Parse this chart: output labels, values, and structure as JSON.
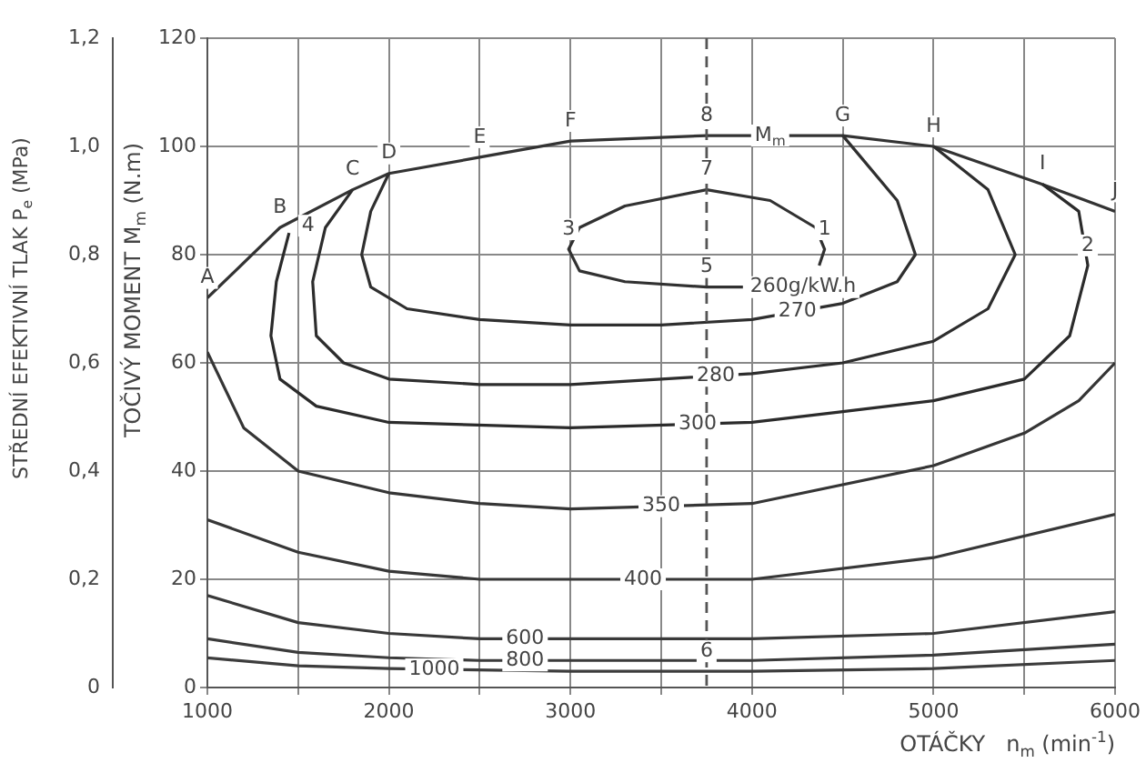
{
  "chart_data": {
    "type": "line",
    "xlabel": "OTÁČKY   n$_{m}$ (min$^{-1}$)",
    "ylabel": "TOČIVÝ MOMENT M$_{m}$ (N.m)",
    "y2label": "STŘEDNÍ EFEKTIVNÍ TLAK P$_{e}$ (MPa)",
    "xlim": [
      1000,
      6000
    ],
    "xticks": [
      1000,
      {
        "value": 1500,
        "label": null
      },
      2000,
      {
        "value": 2500,
        "label": null
      },
      3000,
      {
        "value": 3500,
        "label": null
      },
      4000,
      {
        "value": 4500,
        "label": null
      },
      5000,
      {
        "value": 5500,
        "label": null
      },
      6000
    ],
    "ylim": [
      0,
      120
    ],
    "yticks": [
      0,
      20,
      40,
      60,
      80,
      100,
      120
    ],
    "y2lim": [
      0,
      1.2
    ],
    "y2ticks": [
      0,
      {
        "value": 0.2,
        "label": "0,2"
      },
      {
        "value": 0.4,
        "label": "0,4"
      },
      {
        "value": 0.6,
        "label": "0,6"
      },
      {
        "value": 0.8,
        "label": "0,8"
      },
      {
        "value": 1.0,
        "label": "1,0"
      },
      {
        "value": 1.2,
        "label": "1,2"
      }
    ],
    "grid": true,
    "legend": false,
    "marker": "none",
    "line_style": "solid",
    "series": [
      {
        "type": "line",
        "color": "#333333",
        "x": [
          1000,
          1400,
          1800,
          2000,
          2500,
          3000,
          3750,
          4100,
          4500,
          5000,
          5600,
          6000
        ],
        "values": [
          72,
          85,
          92,
          95,
          98,
          101,
          102,
          102,
          102,
          100,
          93,
          88
        ]
      },
      {
        "type": "line",
        "color": "#313131",
        "x": [
          3950,
          3750,
          3300,
          3050,
          2990,
          3050,
          3300,
          3750,
          4100,
          4350,
          4400,
          4370
        ],
        "values": [
          74,
          74,
          75,
          77,
          81,
          85,
          89,
          92,
          90,
          85,
          81,
          78
        ]
      },
      {
        "type": "line",
        "color": "#2f2f2f",
        "x": [
          2000,
          1900,
          1850,
          1900,
          2100,
          2500,
          3000,
          3500,
          4000,
          4500,
          4800,
          4900,
          4800,
          4600,
          4500
        ],
        "values": [
          95,
          88,
          80,
          74,
          70,
          68,
          67,
          67,
          68,
          71,
          75,
          80,
          90,
          98,
          102
        ]
      },
      {
        "type": "line",
        "color": "#2d2d2d",
        "x": [
          1800,
          1650,
          1580,
          1600,
          1750,
          2000,
          2500,
          3000,
          3500,
          4000,
          4500,
          5000,
          5300,
          5450,
          5300,
          5000
        ],
        "values": [
          92,
          85,
          75,
          65,
          60,
          57,
          56,
          56,
          57,
          58,
          60,
          64,
          70,
          80,
          92,
          100
        ]
      },
      {
        "type": "line",
        "color": "#2b2b2b",
        "x": [
          1450,
          1380,
          1350,
          1400,
          1600,
          2000,
          3000,
          4000,
          4500,
          5000,
          5500,
          5750,
          5850,
          5800,
          5600
        ],
        "values": [
          84,
          75,
          65,
          57,
          52,
          49,
          48,
          49,
          51,
          53,
          57,
          65,
          78,
          88,
          93
        ]
      },
      {
        "type": "line",
        "color": "#353535",
        "x": [
          1000,
          1200,
          1500,
          2000,
          2500,
          3000,
          4000,
          5000,
          5500,
          5800,
          6000
        ],
        "values": [
          62,
          48,
          40,
          36,
          34,
          33,
          34,
          41,
          47,
          53,
          60
        ]
      },
      {
        "type": "line",
        "color": "#373737",
        "x": [
          1000,
          1500,
          2000,
          2500,
          3000,
          4000,
          5000,
          6000
        ],
        "values": [
          31,
          25,
          21.5,
          20,
          20,
          20,
          24,
          32
        ]
      },
      {
        "type": "line",
        "color": "#393939",
        "x": [
          1000,
          1500,
          2000,
          2500,
          3000,
          4000,
          5000,
          6000
        ],
        "values": [
          17,
          12,
          10,
          9,
          9,
          9,
          10,
          14
        ]
      },
      {
        "type": "line",
        "color": "#3b3b3b",
        "x": [
          1000,
          1500,
          2000,
          2500,
          3000,
          4000,
          5000,
          6000
        ],
        "values": [
          9,
          6.5,
          5.5,
          5,
          5,
          5,
          6,
          8
        ]
      },
      {
        "type": "line",
        "color": "#3d3d3d",
        "x": [
          1000,
          1500,
          2000,
          3000,
          4000,
          5000,
          6000
        ],
        "values": [
          5.5,
          4,
          3.5,
          3,
          3,
          3.5,
          5
        ]
      }
    ],
    "ref_lines": [
      {
        "axis": "x",
        "value": 3750,
        "line_style": "dashed",
        "color": "#555555"
      }
    ],
    "annotations": [
      {
        "text": "A",
        "x": 1000,
        "y": 72
      },
      {
        "text": "B",
        "x": 1400,
        "y": 85
      },
      {
        "text": "C",
        "x": 1800,
        "y": 92
      },
      {
        "text": "D",
        "x": 2000,
        "y": 95
      },
      {
        "text": "E",
        "x": 2500,
        "y": 98
      },
      {
        "text": "F",
        "x": 3000,
        "y": 101
      },
      {
        "text": "8",
        "x": 3750,
        "y": 102
      },
      {
        "text": "M$_{m}$",
        "x": 4100,
        "y": 102
      },
      {
        "text": "G",
        "x": 4500,
        "y": 102
      },
      {
        "text": "H",
        "x": 5000,
        "y": 100
      },
      {
        "text": "I",
        "x": 5600,
        "y": 93
      },
      {
        "text": "J",
        "x": 6000,
        "y": 88
      },
      {
        "text": "1",
        "x": 4400,
        "y": 81
      },
      {
        "text": "2",
        "x": 5850,
        "y": 78
      },
      {
        "text": "3",
        "x": 2990,
        "y": 81
      },
      {
        "text": "4",
        "x": 1450,
        "y": 84
      },
      {
        "text": "5",
        "x": 3750,
        "y": 74
      },
      {
        "text": "6",
        "x": 3750,
        "y": 3
      },
      {
        "text": "7",
        "x": 3750,
        "y": 92
      },
      {
        "text": "260g/kW.h",
        "x": 3950,
        "y": 74
      },
      {
        "text": "270",
        "x": 4250,
        "y": 69.5
      },
      {
        "text": "280",
        "x": 3800,
        "y": 57.6
      },
      {
        "text": "300",
        "x": 3700,
        "y": 48.7
      },
      {
        "text": "350",
        "x": 3500,
        "y": 33.5
      },
      {
        "text": "400",
        "x": 3400,
        "y": 20
      },
      {
        "text": "600",
        "x": 2750,
        "y": 9
      },
      {
        "text": "800",
        "x": 2750,
        "y": 5
      },
      {
        "text": "1000",
        "x": 2250,
        "y": 3.375
      }
    ]
  }
}
